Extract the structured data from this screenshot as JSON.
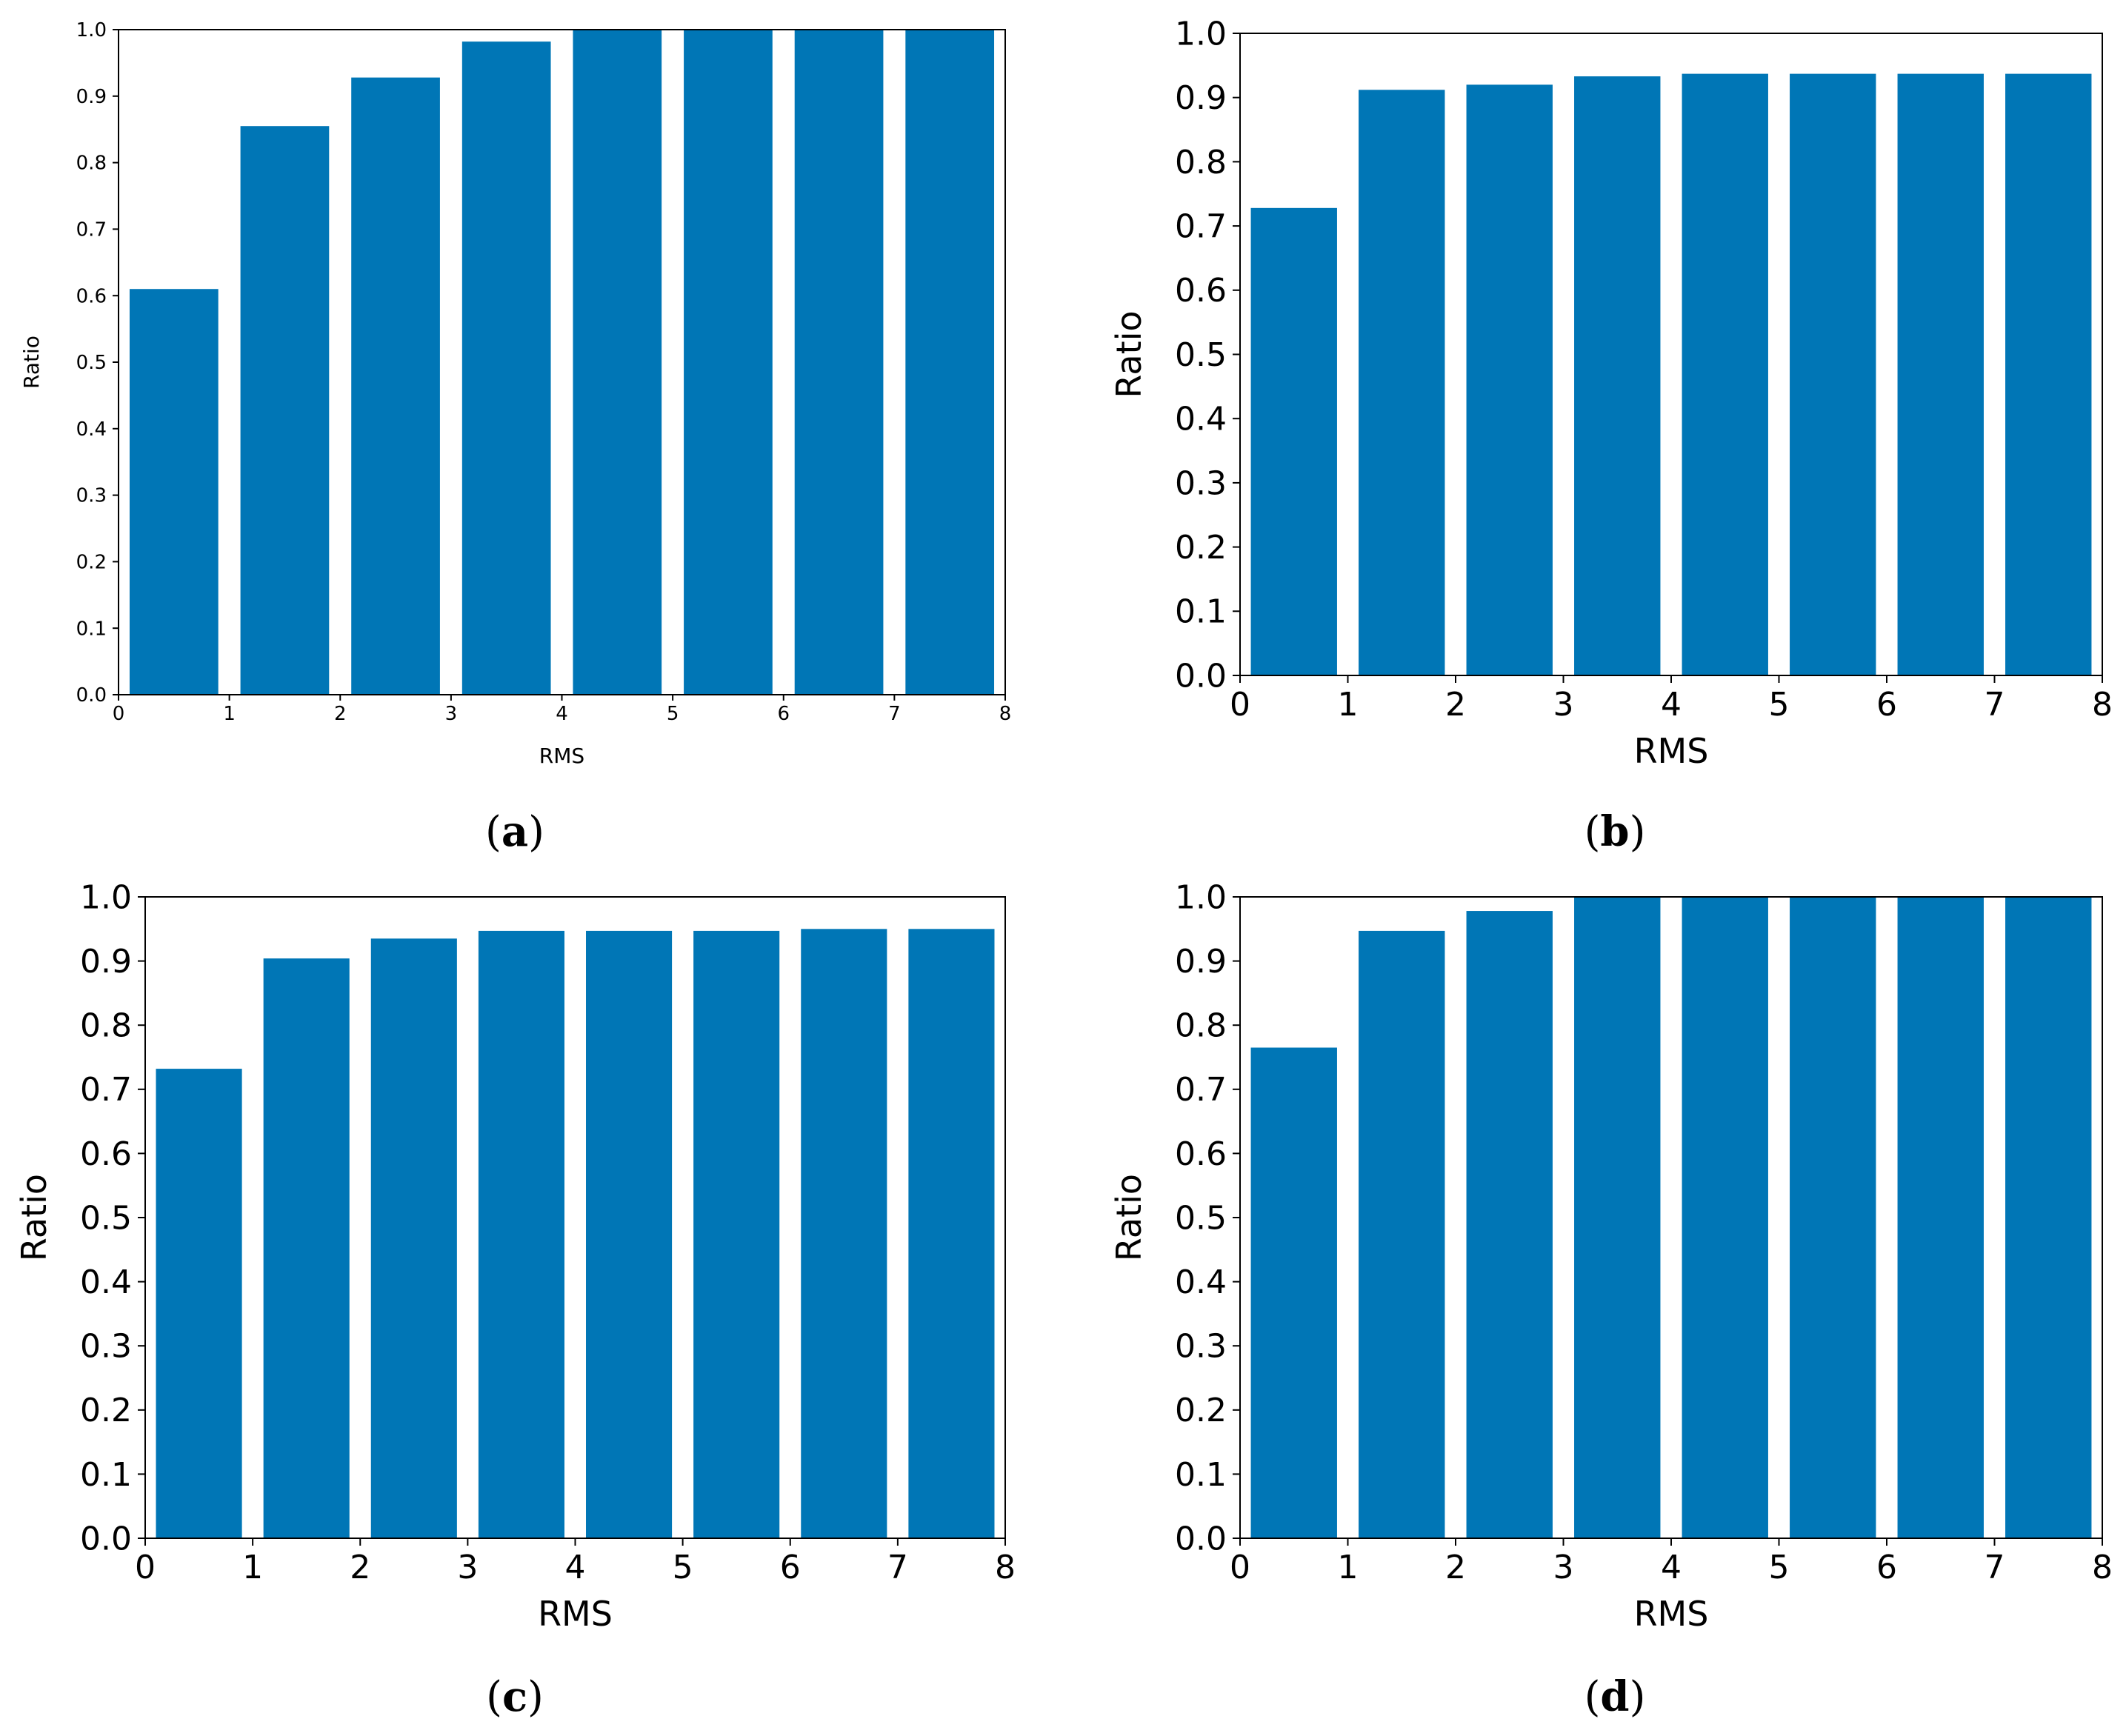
{
  "bar_color": "#0076b6",
  "chart_data": [
    {
      "type": "bar",
      "panel": "a",
      "caption_letter": "a",
      "title": "",
      "xlabel": "RMS",
      "ylabel": "Ratio",
      "x_ticks": [
        "0",
        "1",
        "2",
        "3",
        "4",
        "5",
        "6",
        "7",
        "8"
      ],
      "y_ticks": [
        "0.0",
        "0.1",
        "0.2",
        "0.3",
        "0.4",
        "0.5",
        "0.6",
        "0.7",
        "0.8",
        "0.9",
        "1.0"
      ],
      "xlim": [
        0,
        8
      ],
      "ylim": [
        0,
        1.0
      ],
      "bars": [
        {
          "x0": 0.1,
          "x1": 0.9,
          "value": 0.61
        },
        {
          "x0": 1.1,
          "x1": 1.9,
          "value": 0.855
        },
        {
          "x0": 2.1,
          "x1": 2.9,
          "value": 0.928
        },
        {
          "x0": 3.1,
          "x1": 3.9,
          "value": 0.982
        },
        {
          "x0": 4.1,
          "x1": 4.9,
          "value": 1.0
        },
        {
          "x0": 5.1,
          "x1": 5.9,
          "value": 1.0
        },
        {
          "x0": 6.1,
          "x1": 6.9,
          "value": 1.0
        },
        {
          "x0": 7.1,
          "x1": 7.9,
          "value": 1.0
        }
      ]
    },
    {
      "type": "bar",
      "panel": "b",
      "caption_letter": "b",
      "title": "",
      "xlabel": "RMS",
      "ylabel": "Ratio",
      "x_ticks": [
        "0",
        "1",
        "2",
        "3",
        "4",
        "5",
        "6",
        "7",
        "8"
      ],
      "y_ticks": [
        "0.0",
        "0.1",
        "0.2",
        "0.3",
        "0.4",
        "0.5",
        "0.6",
        "0.7",
        "0.8",
        "0.9",
        "1.0"
      ],
      "xlim": [
        0,
        8
      ],
      "ylim": [
        0,
        1.0
      ],
      "bars": [
        {
          "x0": 0.1,
          "x1": 0.9,
          "value": 0.728
        },
        {
          "x0": 1.1,
          "x1": 1.9,
          "value": 0.912
        },
        {
          "x0": 2.1,
          "x1": 2.9,
          "value": 0.92
        },
        {
          "x0": 3.1,
          "x1": 3.9,
          "value": 0.933
        },
        {
          "x0": 4.1,
          "x1": 4.9,
          "value": 0.937
        },
        {
          "x0": 5.1,
          "x1": 5.9,
          "value": 0.937
        },
        {
          "x0": 6.1,
          "x1": 6.9,
          "value": 0.937
        },
        {
          "x0": 7.1,
          "x1": 7.9,
          "value": 0.937
        }
      ]
    },
    {
      "type": "bar",
      "panel": "c",
      "caption_letter": "c",
      "title": "",
      "xlabel": "RMS",
      "ylabel": "Ratio",
      "x_ticks": [
        "0",
        "1",
        "2",
        "3",
        "4",
        "5",
        "6",
        "7",
        "8"
      ],
      "y_ticks": [
        "0.0",
        "0.1",
        "0.2",
        "0.3",
        "0.4",
        "0.5",
        "0.6",
        "0.7",
        "0.8",
        "0.9",
        "1.0"
      ],
      "xlim": [
        0,
        8
      ],
      "ylim": [
        0,
        1.0
      ],
      "bars": [
        {
          "x0": 0.1,
          "x1": 0.9,
          "value": 0.732
        },
        {
          "x0": 1.1,
          "x1": 1.9,
          "value": 0.904
        },
        {
          "x0": 2.1,
          "x1": 2.9,
          "value": 0.935
        },
        {
          "x0": 3.1,
          "x1": 3.9,
          "value": 0.947
        },
        {
          "x0": 4.1,
          "x1": 4.9,
          "value": 0.947
        },
        {
          "x0": 5.1,
          "x1": 5.9,
          "value": 0.947
        },
        {
          "x0": 6.1,
          "x1": 6.9,
          "value": 0.95
        },
        {
          "x0": 7.1,
          "x1": 7.9,
          "value": 0.95
        }
      ]
    },
    {
      "type": "bar",
      "panel": "d",
      "caption_letter": "d",
      "title": "",
      "xlabel": "RMS",
      "ylabel": "Ratio",
      "x_ticks": [
        "0",
        "1",
        "2",
        "3",
        "4",
        "5",
        "6",
        "7",
        "8"
      ],
      "y_ticks": [
        "0.0",
        "0.1",
        "0.2",
        "0.3",
        "0.4",
        "0.5",
        "0.6",
        "0.7",
        "0.8",
        "0.9",
        "1.0"
      ],
      "xlim": [
        0,
        8
      ],
      "ylim": [
        0,
        1.0
      ],
      "bars": [
        {
          "x0": 0.1,
          "x1": 0.9,
          "value": 0.765
        },
        {
          "x0": 1.1,
          "x1": 1.9,
          "value": 0.947
        },
        {
          "x0": 2.1,
          "x1": 2.9,
          "value": 0.978
        },
        {
          "x0": 3.1,
          "x1": 3.9,
          "value": 1.0
        },
        {
          "x0": 4.1,
          "x1": 4.9,
          "value": 1.0
        },
        {
          "x0": 5.1,
          "x1": 5.9,
          "value": 1.0
        },
        {
          "x0": 6.1,
          "x1": 6.9,
          "value": 1.0
        },
        {
          "x0": 7.1,
          "x1": 7.9,
          "value": 1.0
        }
      ]
    }
  ]
}
